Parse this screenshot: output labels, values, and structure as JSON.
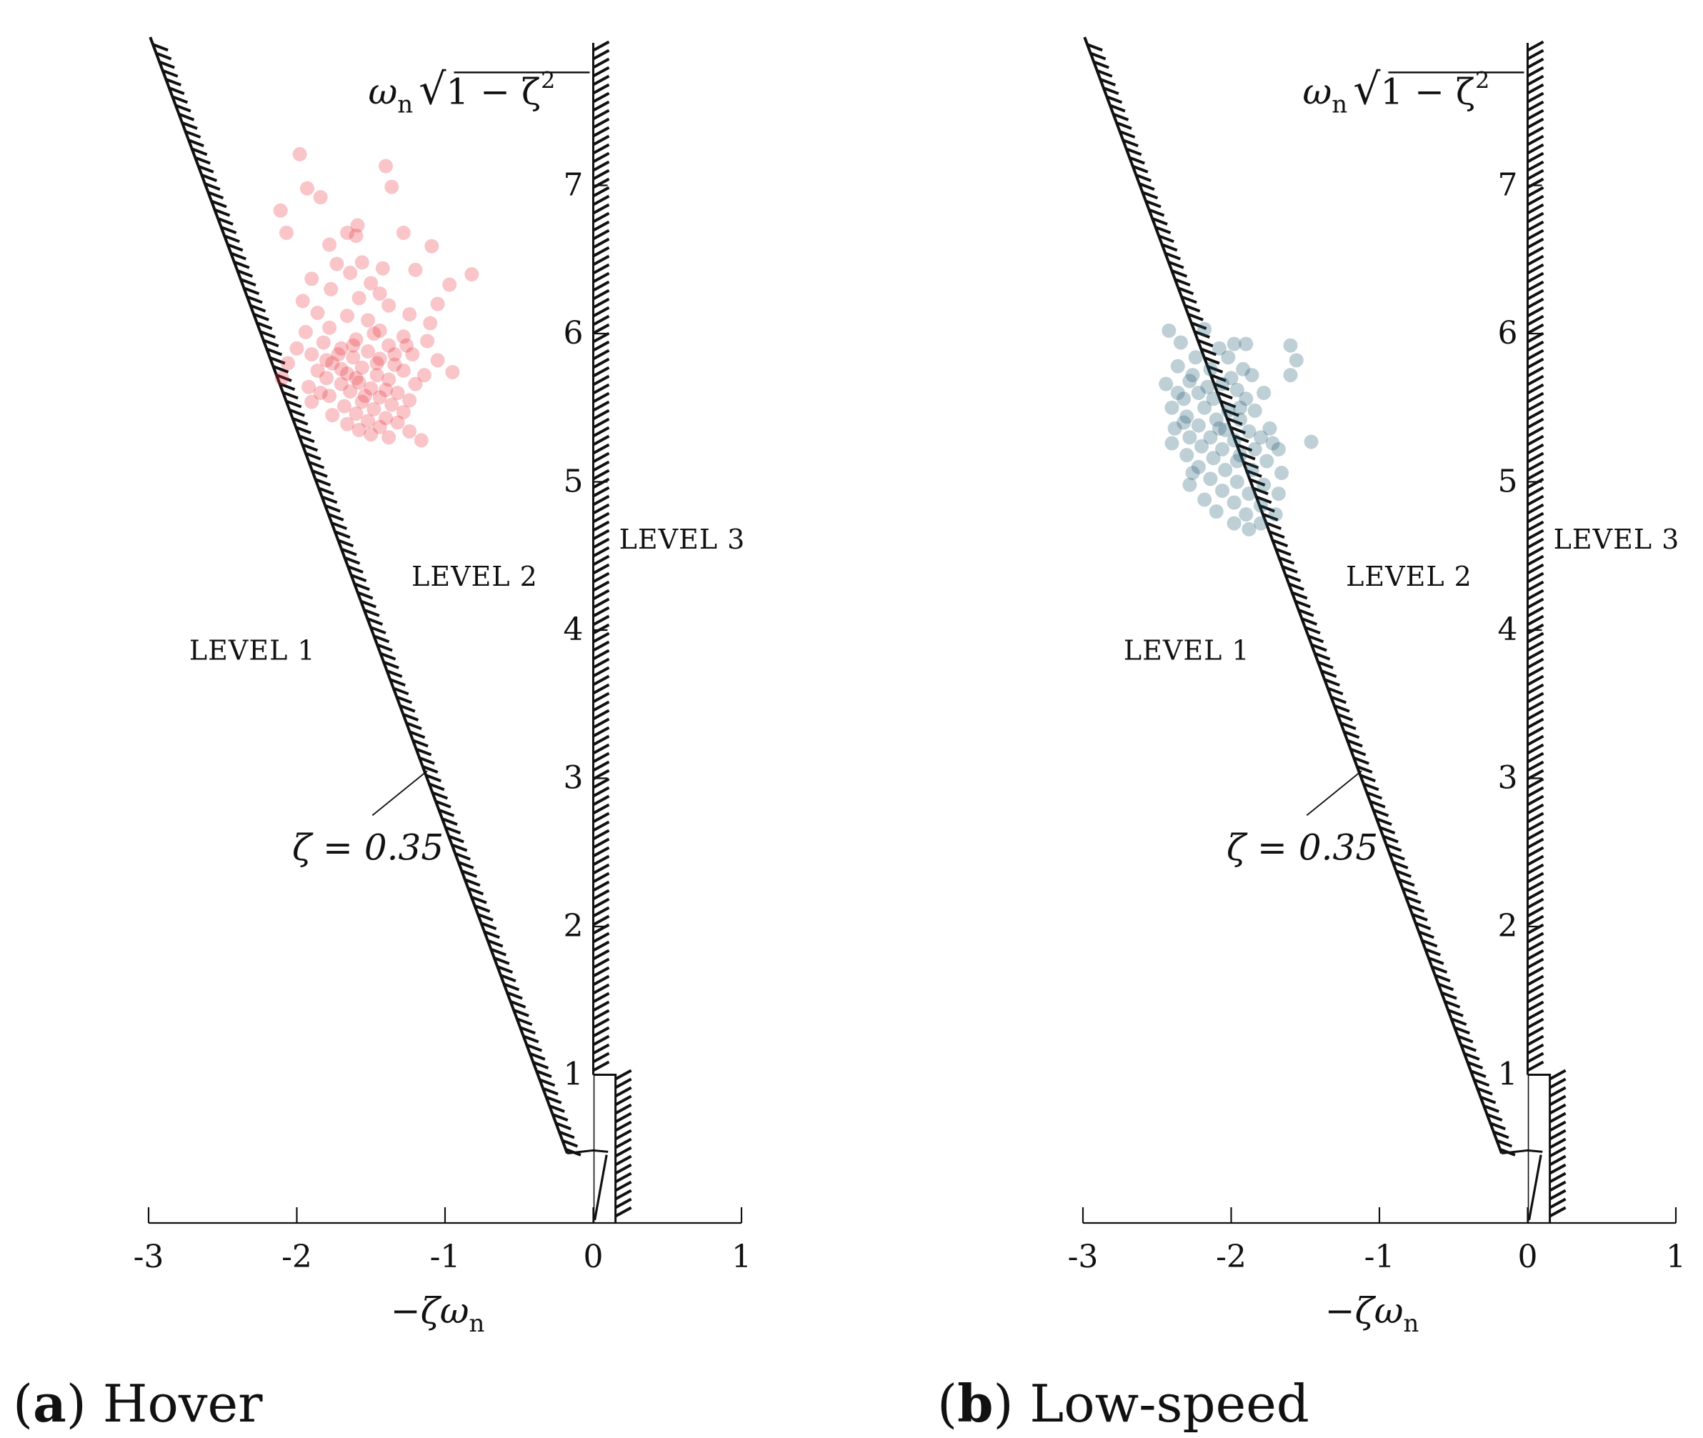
{
  "chart_data": [
    {
      "type": "scatter",
      "panel_letter": "a",
      "panel_name": "Hover",
      "xlabel_parts": [
        "−ζω",
        "n"
      ],
      "ylabel_parts": [
        "ω",
        "n",
        "√",
        "1 − ζ",
        "2"
      ],
      "xlim": [
        -3,
        1
      ],
      "ylim": [
        0,
        8
      ],
      "x_ticks": [
        -3,
        -2,
        -1,
        0,
        1
      ],
      "x_tick_labels": [
        "-3",
        "-2",
        "-1",
        "0",
        "1"
      ],
      "y_ticks": [
        1,
        2,
        3,
        4,
        5,
        6,
        7
      ],
      "y_tick_labels": [
        "1",
        "2",
        "3",
        "4",
        "5",
        "6",
        "7"
      ],
      "regions": [
        {
          "label": "LEVEL 1",
          "x": -2.3,
          "y": 3.8
        },
        {
          "label": "LEVEL 2",
          "x": -0.8,
          "y": 4.3
        },
        {
          "label": "LEVEL 3",
          "x": 0.6,
          "y": 4.55
        }
      ],
      "damping_annotation": "ζ = 0.35",
      "damping_ratio": 0.35,
      "series": [
        {
          "name": "Hover",
          "color": "#e8303a",
          "opacity": 0.28,
          "points": [
            [
              -1.98,
              7.21
            ],
            [
              -1.4,
              7.13
            ],
            [
              -1.93,
              6.98
            ],
            [
              -1.84,
              6.92
            ],
            [
              -1.36,
              6.99
            ],
            [
              -2.11,
              6.83
            ],
            [
              -1.59,
              6.73
            ],
            [
              -2.07,
              6.68
            ],
            [
              -1.78,
              6.6
            ],
            [
              -1.66,
              6.68
            ],
            [
              -1.6,
              6.66
            ],
            [
              -1.28,
              6.68
            ],
            [
              -1.09,
              6.59
            ],
            [
              -1.73,
              6.47
            ],
            [
              -1.56,
              6.48
            ],
            [
              -1.42,
              6.44
            ],
            [
              -1.64,
              6.41
            ],
            [
              -1.2,
              6.43
            ],
            [
              -1.9,
              6.37
            ],
            [
              -0.82,
              6.4
            ],
            [
              -1.5,
              6.34
            ],
            [
              -1.77,
              6.3
            ],
            [
              -1.44,
              6.27
            ],
            [
              -0.97,
              6.33
            ],
            [
              -1.58,
              6.24
            ],
            [
              -1.96,
              6.22
            ],
            [
              -1.05,
              6.2
            ],
            [
              -1.38,
              6.19
            ],
            [
              -1.86,
              6.14
            ],
            [
              -1.66,
              6.12
            ],
            [
              -1.24,
              6.13
            ],
            [
              -1.52,
              6.09
            ],
            [
              -1.1,
              6.07
            ],
            [
              -1.78,
              6.04
            ],
            [
              -1.44,
              6.02
            ],
            [
              -1.94,
              6.01
            ],
            [
              -1.28,
              5.98
            ],
            [
              -1.6,
              5.96
            ],
            [
              -1.12,
              5.95
            ],
            [
              -1.82,
              5.94
            ],
            [
              -1.38,
              5.92
            ],
            [
              -2.0,
              5.9
            ],
            [
              -1.7,
              5.9
            ],
            [
              -1.52,
              5.88
            ],
            [
              -1.22,
              5.86
            ],
            [
              -1.9,
              5.86
            ],
            [
              -1.62,
              5.84
            ],
            [
              -1.44,
              5.83
            ],
            [
              -1.05,
              5.82
            ],
            [
              -2.06,
              5.8
            ],
            [
              -1.76,
              5.8
            ],
            [
              -1.34,
              5.79
            ],
            [
              -1.56,
              5.77
            ],
            [
              -1.86,
              5.75
            ],
            [
              -1.28,
              5.75
            ],
            [
              -1.66,
              5.73
            ],
            [
              -1.46,
              5.72
            ],
            [
              -0.95,
              5.74
            ],
            [
              -2.1,
              5.7
            ],
            [
              -1.8,
              5.7
            ],
            [
              -1.38,
              5.69
            ],
            [
              -1.58,
              5.67
            ],
            [
              -1.7,
              5.66
            ],
            [
              -1.2,
              5.66
            ],
            [
              -1.92,
              5.64
            ],
            [
              -1.5,
              5.63
            ],
            [
              -1.64,
              5.61
            ],
            [
              -1.32,
              5.6
            ],
            [
              -1.78,
              5.58
            ],
            [
              -1.44,
              5.57
            ],
            [
              -1.24,
              5.55
            ],
            [
              -1.56,
              5.54
            ],
            [
              -1.9,
              5.54
            ],
            [
              -1.36,
              5.52
            ],
            [
              -1.68,
              5.51
            ],
            [
              -1.48,
              5.49
            ],
            [
              -1.28,
              5.47
            ],
            [
              -1.6,
              5.46
            ],
            [
              -1.76,
              5.45
            ],
            [
              -1.4,
              5.43
            ],
            [
              -1.52,
              5.41
            ],
            [
              -1.32,
              5.4
            ],
            [
              -1.66,
              5.39
            ],
            [
              -1.44,
              5.37
            ],
            [
              -1.58,
              5.35
            ],
            [
              -1.24,
              5.34
            ],
            [
              -1.5,
              5.32
            ],
            [
              -1.38,
              5.3
            ],
            [
              -1.16,
              5.28
            ],
            [
              -1.84,
              5.6
            ],
            [
              -1.72,
              5.86
            ],
            [
              -1.26,
              5.92
            ],
            [
              -1.14,
              5.72
            ],
            [
              -1.48,
              6.0
            ],
            [
              -1.6,
              5.7
            ],
            [
              -1.4,
              5.62
            ],
            [
              -1.54,
              5.58
            ],
            [
              -1.7,
              5.76
            ],
            [
              -1.34,
              5.86
            ],
            [
              -1.46,
              5.8
            ],
            [
              -1.62,
              5.92
            ],
            [
              -1.8,
              5.82
            ]
          ]
        }
      ]
    },
    {
      "type": "scatter",
      "panel_letter": "b",
      "panel_name": "Low-speed",
      "xlabel_parts": [
        "−ζω",
        "n"
      ],
      "ylabel_parts": [
        "ω",
        "n",
        "√",
        "1 − ζ",
        "2"
      ],
      "xlim": [
        -3,
        1
      ],
      "ylim": [
        0,
        8
      ],
      "x_ticks": [
        -3,
        -2,
        -1,
        0,
        1
      ],
      "x_tick_labels": [
        "-3",
        "-2",
        "-1",
        "0",
        "1"
      ],
      "y_ticks": [
        1,
        2,
        3,
        4,
        5,
        6,
        7
      ],
      "y_tick_labels": [
        "1",
        "2",
        "3",
        "4",
        "5",
        "6",
        "7"
      ],
      "regions": [
        {
          "label": "LEVEL 1",
          "x": -2.3,
          "y": 3.8
        },
        {
          "label": "LEVEL 2",
          "x": -0.8,
          "y": 4.3
        },
        {
          "label": "LEVEL 3",
          "x": 0.6,
          "y": 4.55
        }
      ],
      "damping_annotation": "ζ = 0.35",
      "damping_ratio": 0.35,
      "series": [
        {
          "name": "Low-speed",
          "color": "#15536b",
          "opacity": 0.28,
          "points": [
            [
              -2.42,
              6.02
            ],
            [
              -2.18,
              6.03
            ],
            [
              -1.98,
              5.93
            ],
            [
              -1.9,
              5.93
            ],
            [
              -1.6,
              5.92
            ],
            [
              -2.34,
              5.94
            ],
            [
              -2.08,
              5.9
            ],
            [
              -2.24,
              5.84
            ],
            [
              -2.02,
              5.84
            ],
            [
              -1.56,
              5.82
            ],
            [
              -2.36,
              5.78
            ],
            [
              -2.14,
              5.76
            ],
            [
              -1.92,
              5.76
            ],
            [
              -1.86,
              5.72
            ],
            [
              -1.6,
              5.72
            ],
            [
              -2.44,
              5.66
            ],
            [
              -2.28,
              5.68
            ],
            [
              -2.06,
              5.66
            ],
            [
              -1.96,
              5.62
            ],
            [
              -2.22,
              5.6
            ],
            [
              -2.32,
              5.56
            ],
            [
              -2.12,
              5.56
            ],
            [
              -1.9,
              5.56
            ],
            [
              -2.4,
              5.5
            ],
            [
              -2.18,
              5.5
            ],
            [
              -2.02,
              5.48
            ],
            [
              -1.84,
              5.48
            ],
            [
              -2.3,
              5.44
            ],
            [
              -2.1,
              5.42
            ],
            [
              -1.94,
              5.42
            ],
            [
              -2.22,
              5.38
            ],
            [
              -2.38,
              5.36
            ],
            [
              -2.04,
              5.35
            ],
            [
              -1.88,
              5.34
            ],
            [
              -1.74,
              5.36
            ],
            [
              -2.28,
              5.3
            ],
            [
              -2.14,
              5.3
            ],
            [
              -1.98,
              5.28
            ],
            [
              -1.46,
              5.27
            ],
            [
              -2.4,
              5.26
            ],
            [
              -2.2,
              5.24
            ],
            [
              -2.06,
              5.22
            ],
            [
              -1.84,
              5.22
            ],
            [
              -1.68,
              5.22
            ],
            [
              -2.3,
              5.18
            ],
            [
              -2.12,
              5.16
            ],
            [
              -1.96,
              5.14
            ],
            [
              -1.76,
              5.14
            ],
            [
              -2.22,
              5.1
            ],
            [
              -2.04,
              5.08
            ],
            [
              -1.86,
              5.08
            ],
            [
              -1.66,
              5.06
            ],
            [
              -2.14,
              5.02
            ],
            [
              -1.96,
              5.0
            ],
            [
              -1.78,
              4.98
            ],
            [
              -2.28,
              4.98
            ],
            [
              -2.06,
              4.94
            ],
            [
              -1.88,
              4.92
            ],
            [
              -1.68,
              4.92
            ],
            [
              -2.18,
              4.88
            ],
            [
              -1.98,
              4.86
            ],
            [
              -1.8,
              4.84
            ],
            [
              -2.1,
              4.8
            ],
            [
              -1.9,
              4.78
            ],
            [
              -1.7,
              4.78
            ],
            [
              -1.98,
              4.72
            ],
            [
              -1.8,
              4.72
            ],
            [
              -1.88,
              4.68
            ],
            [
              -2.36,
              5.6
            ],
            [
              -2.26,
              5.72
            ],
            [
              -2.0,
              5.7
            ],
            [
              -1.78,
              5.6
            ],
            [
              -2.16,
              5.64
            ],
            [
              -1.94,
              5.5
            ],
            [
              -2.08,
              5.36
            ],
            [
              -1.8,
              5.3
            ],
            [
              -2.26,
              5.06
            ],
            [
              -1.94,
              5.18
            ],
            [
              -2.32,
              5.4
            ],
            [
              -1.72,
              5.26
            ]
          ]
        }
      ]
    }
  ]
}
